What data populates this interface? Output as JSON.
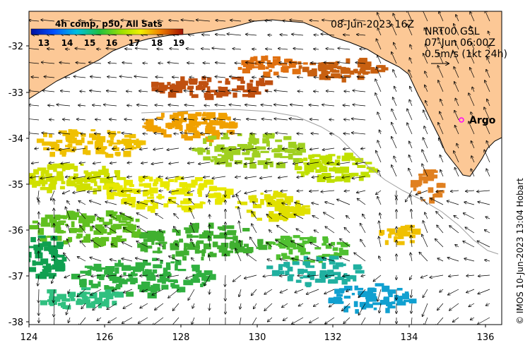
{
  "map": {
    "timestamp": "08-Jun-2023 16Z",
    "product_line1": "NRT00 GSL",
    "product_line2": "07-Jun 06:00Z",
    "scale_label": "0.5m/s (1kt 24h)",
    "argo_label": "Argo",
    "credit": "© IMOS 10-Jun-2023 13:04 Hobart",
    "colorbar": {
      "title": "4h comp, p50, All Sats",
      "ticks": [
        "13",
        "14",
        "15",
        "16",
        "17",
        "18",
        "19"
      ]
    },
    "lon_ticks": [
      "124",
      "126",
      "128",
      "130",
      "132",
      "134",
      "136"
    ],
    "lat_ticks": [
      "-32",
      "-33",
      "-34",
      "-35",
      "-36",
      "-37",
      "-38"
    ],
    "colors": {
      "land": "#fcc896",
      "argo": "#ff00ff",
      "bathymetry": "#a0a0a0"
    }
  }
}
